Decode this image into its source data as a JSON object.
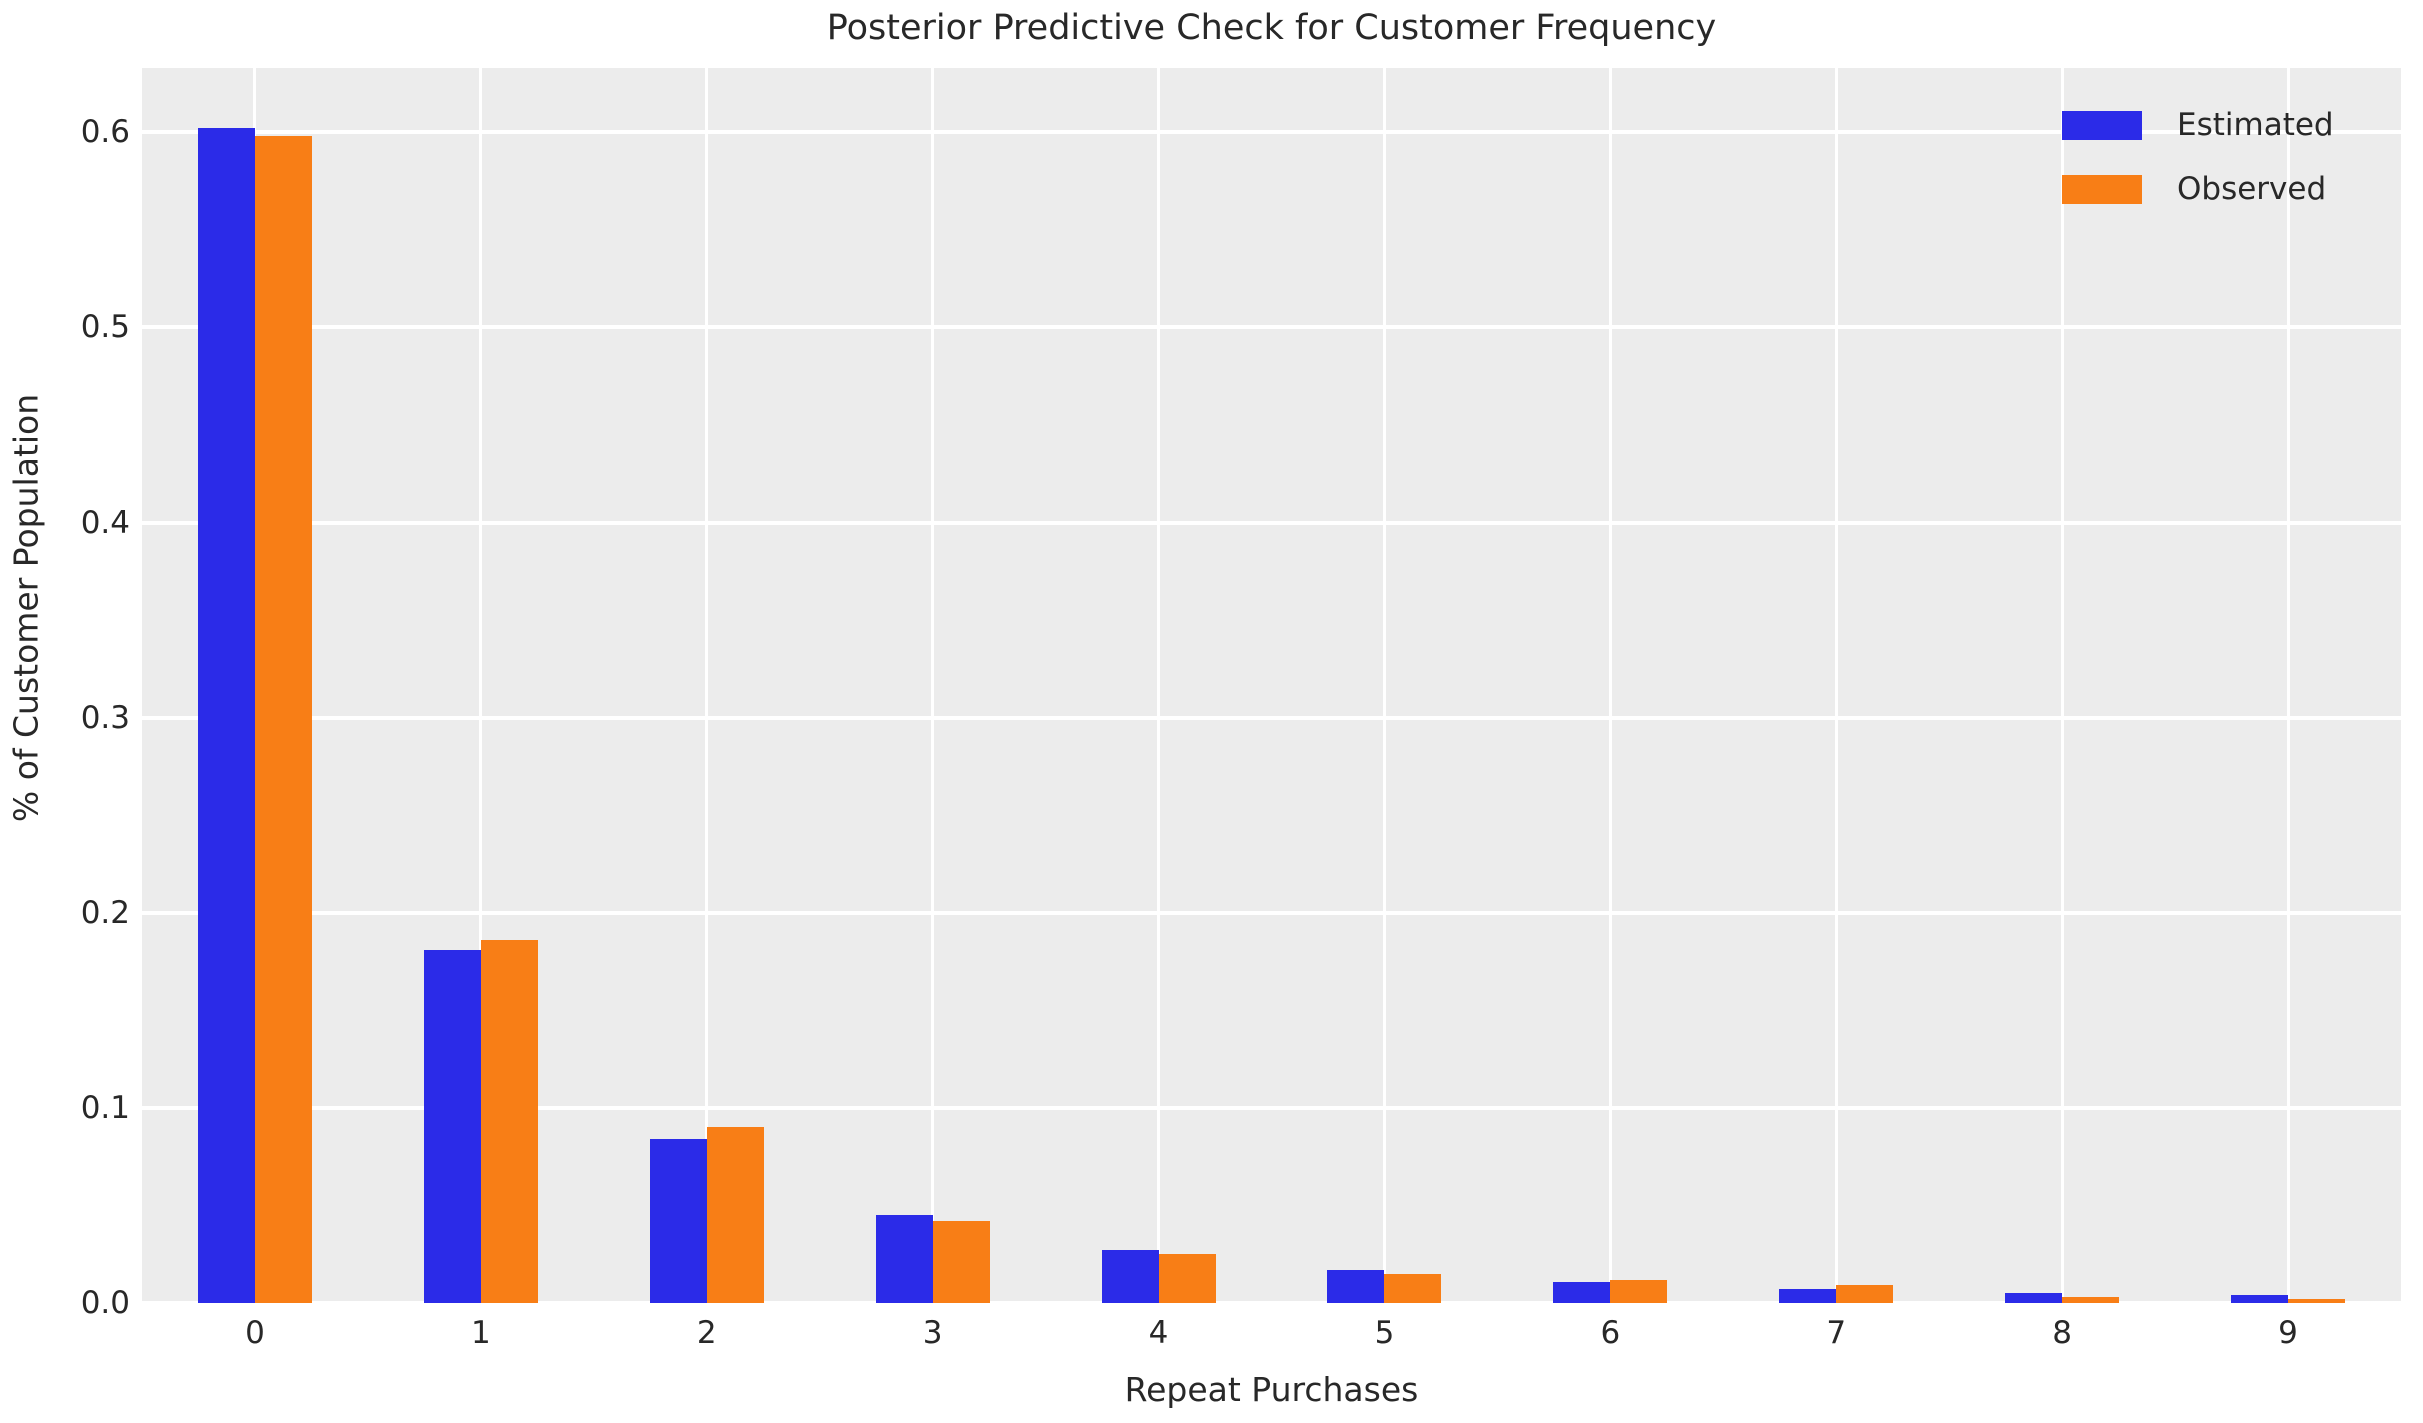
{
  "chart_data": {
    "type": "bar",
    "title": "Posterior Predictive Check for Customer Frequency",
    "xlabel": "Repeat Purchases",
    "ylabel": "% of Customer Population",
    "categories": [
      "0",
      "1",
      "2",
      "3",
      "4",
      "5",
      "6",
      "7",
      "8",
      "9"
    ],
    "series": [
      {
        "name": "Estimated",
        "color": "#2b2be8",
        "values": [
          0.602,
          0.181,
          0.084,
          0.045,
          0.027,
          0.017,
          0.011,
          0.007,
          0.005,
          0.004
        ]
      },
      {
        "name": "Observed",
        "color": "#f87e16",
        "values": [
          0.598,
          0.186,
          0.09,
          0.042,
          0.025,
          0.015,
          0.012,
          0.009,
          0.003,
          0.002
        ]
      }
    ],
    "ytick_labels": [
      "0.0",
      "0.1",
      "0.2",
      "0.3",
      "0.4",
      "0.5",
      "0.6"
    ],
    "ylim": [
      0,
      0.633
    ],
    "grid": true,
    "legend_position": "upper right",
    "colors": {
      "plot_bg": "#ececec",
      "grid": "#ffffff",
      "text": "#282828",
      "figure_bg": "#ffffff"
    }
  }
}
